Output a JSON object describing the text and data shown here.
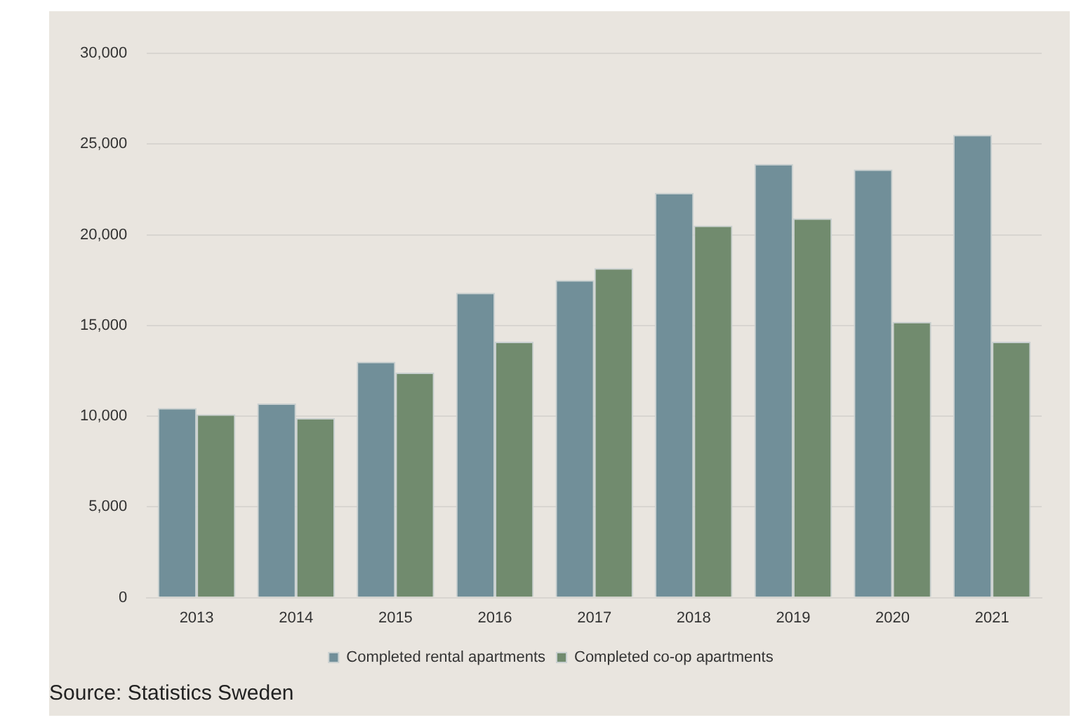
{
  "chart_data": {
    "type": "bar",
    "categories": [
      "2013",
      "2014",
      "2015",
      "2016",
      "2017",
      "2018",
      "2019",
      "2020",
      "2021"
    ],
    "series": [
      {
        "name": "Completed rental apartments",
        "color": "#718f99",
        "values": [
          10450,
          10700,
          13000,
          16800,
          17500,
          22300,
          23900,
          23600,
          25500
        ]
      },
      {
        "name": "Completed co-op apartments",
        "color": "#718b6e",
        "values": [
          10100,
          9900,
          12400,
          14100,
          18150,
          20500,
          20900,
          15200,
          14100
        ]
      }
    ],
    "ylim": [
      0,
      30000
    ],
    "yticks": [
      {
        "value": 0,
        "label": "0"
      },
      {
        "value": 5000,
        "label": "5,000"
      },
      {
        "value": 10000,
        "label": "10,000"
      },
      {
        "value": 15000,
        "label": "15,000"
      },
      {
        "value": 20000,
        "label": "20,000"
      },
      {
        "value": 25000,
        "label": "25,000"
      },
      {
        "value": 30000,
        "label": "30,000"
      }
    ],
    "grid": "y",
    "legend": "bottom",
    "annotations": [
      "Source: Statistics Sweden"
    ]
  }
}
